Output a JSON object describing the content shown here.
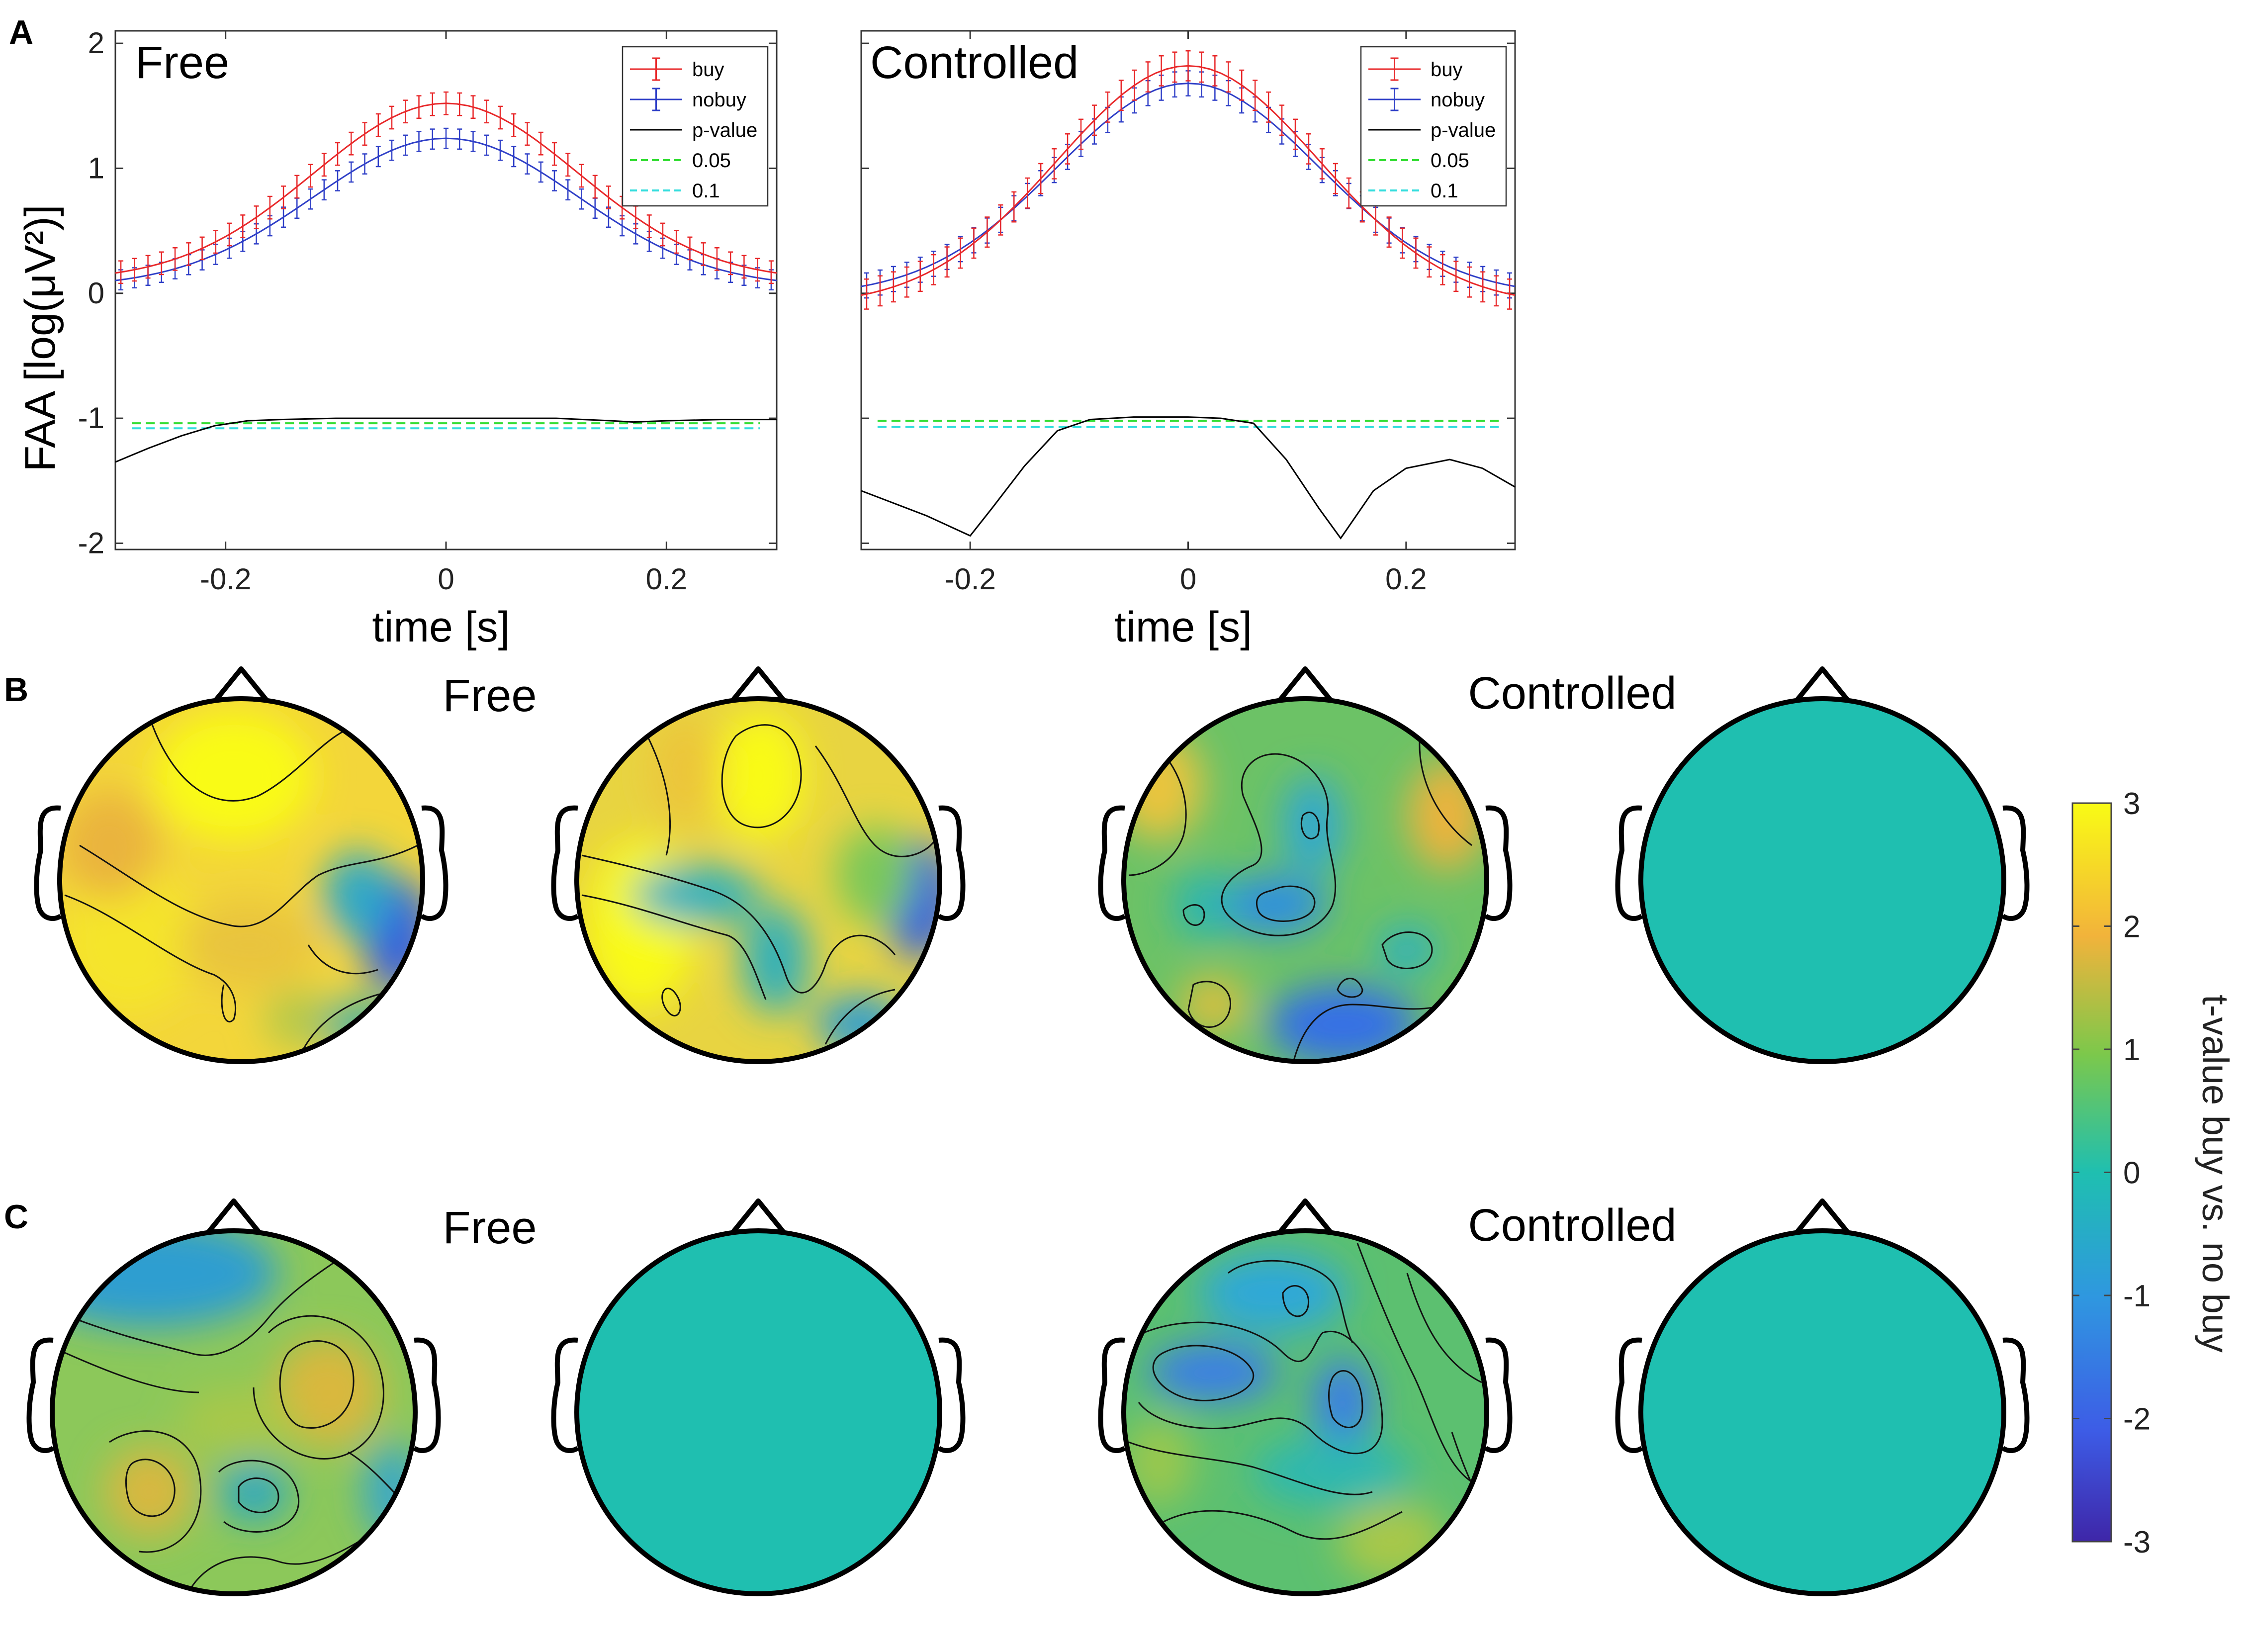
{
  "panel_labels": {
    "a": "A",
    "b": "B",
    "c": "C"
  },
  "colors": {
    "buy": "#e8282a",
    "nobuy": "#2f3fc7",
    "pvalue": "#000000",
    "thr05": "#33dd33",
    "thr10": "#33dddd",
    "zero_map": "#1fbfb0"
  },
  "chart_data": [
    {
      "type": "line",
      "title": "Free",
      "xlabel": "time [s]",
      "ylabel": "FAA [log(μV²)]",
      "xlim": [
        -0.3,
        0.3
      ],
      "ylim": [
        -2.05,
        2.1
      ],
      "xticks": [
        "-0.2",
        "0",
        "0.2"
      ],
      "yticks": [
        "-2",
        "-1",
        "0",
        "1",
        "2"
      ],
      "legend_position": "top-right",
      "series": [
        {
          "name": "buy",
          "peak": 1.52,
          "base": 0.1,
          "width": 0.12,
          "err": 0.09
        },
        {
          "name": "nobuy",
          "peak": 1.24,
          "base": 0.05,
          "width": 0.12,
          "err": 0.08
        },
        {
          "name": "p-value",
          "x": [
            -0.3,
            -0.27,
            -0.24,
            -0.21,
            -0.18,
            -0.15,
            -0.1,
            0,
            0.1,
            0.15,
            0.17,
            0.2,
            0.25,
            0.3
          ],
          "y": [
            -1.35,
            -1.24,
            -1.14,
            -1.06,
            -1.02,
            -1.01,
            -1.0,
            -1.0,
            -1.0,
            -1.02,
            -1.03,
            -1.02,
            -1.01,
            -1.01
          ]
        },
        {
          "name": "0.05",
          "value": -1.04
        },
        {
          "name": "0.1",
          "value": -1.08
        }
      ]
    },
    {
      "type": "line",
      "title": "Controlled",
      "xlabel": "time [s]",
      "xlim": [
        -0.3,
        0.3
      ],
      "ylim": [
        -2.05,
        2.1
      ],
      "xticks": [
        "-0.2",
        "0",
        "0.2"
      ],
      "legend_position": "top-right",
      "series": [
        {
          "name": "buy",
          "peak": 1.82,
          "base": -0.1,
          "width": 0.12,
          "err": 0.12
        },
        {
          "name": "nobuy",
          "peak": 1.68,
          "base": -0.02,
          "width": 0.12,
          "err": 0.1
        },
        {
          "name": "p-value",
          "x": [
            -0.3,
            -0.27,
            -0.24,
            -0.22,
            -0.2,
            -0.18,
            -0.15,
            -0.12,
            -0.09,
            -0.05,
            0,
            0.03,
            0.06,
            0.09,
            0.12,
            0.14,
            0.17,
            0.2,
            0.24,
            0.27,
            0.3
          ],
          "y": [
            -1.58,
            -1.68,
            -1.78,
            -1.86,
            -1.94,
            -1.72,
            -1.38,
            -1.1,
            -1.01,
            -0.99,
            -0.99,
            -1.0,
            -1.04,
            -1.33,
            -1.72,
            -1.96,
            -1.58,
            -1.4,
            -1.33,
            -1.4,
            -1.55
          ]
        },
        {
          "name": "0.05",
          "value": -1.02
        },
        {
          "name": "0.1",
          "value": -1.07
        }
      ]
    },
    {
      "type": "heatmap",
      "title": "t-value buy vs. no buy",
      "range": [
        -3,
        3
      ],
      "ticks": [
        "3",
        "2",
        "1",
        "0",
        "-1",
        "-2",
        "-3"
      ]
    }
  ],
  "topomaps": {
    "b": {
      "title_free": "Free",
      "title_controlled": "Controlled"
    },
    "c": {
      "title_free": "Free",
      "title_controlled": "Controlled"
    }
  }
}
